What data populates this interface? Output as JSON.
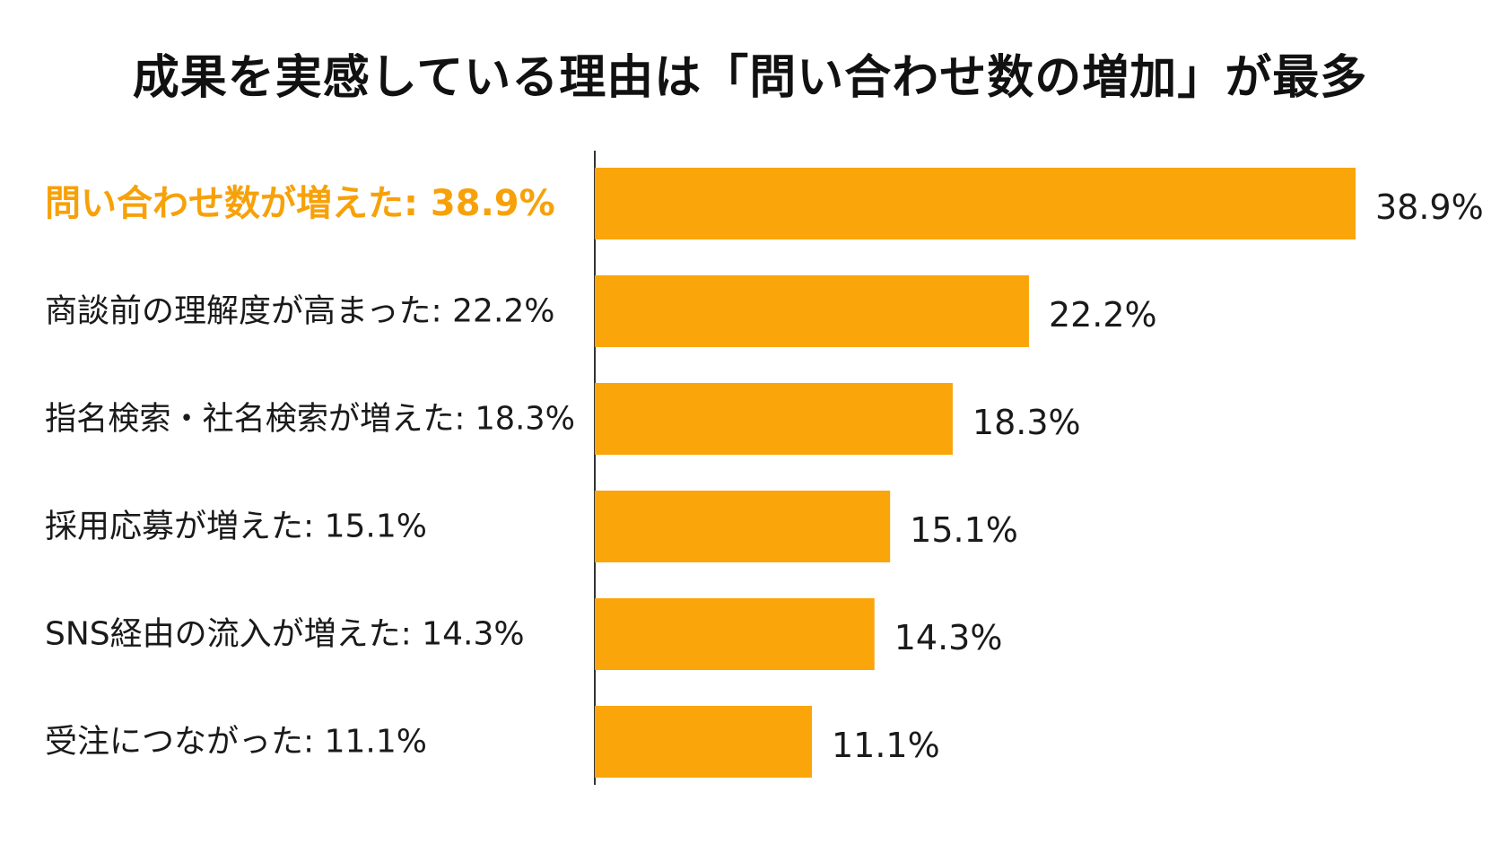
{
  "chart_data": {
    "type": "bar",
    "orientation": "horizontal",
    "title": "成果を実感している理由は「問い合わせ数の増加」が最多",
    "categories": [
      "問い合わせ数が増えた",
      "商談前の理解度が高まった",
      "指名検索・社名検索が増えた",
      "採用応募が増えた",
      "SNS経由の流入が増えた",
      "受注につながった"
    ],
    "category_labels": [
      "問い合わせ数が増えた: 38.9%",
      "商談前の理解度が高まった: 22.2%",
      "指名検索・社名検索が増えた: 18.3%",
      "採用応募が増えた: 15.1%",
      "SNS経由の流入が増えた: 14.3%",
      "受注につながった: 11.1%"
    ],
    "values": [
      38.9,
      22.2,
      18.3,
      15.1,
      14.3,
      11.1
    ],
    "value_labels": [
      "38.9%",
      "22.2%",
      "18.3%",
      "15.1%",
      "14.3%",
      "11.1%"
    ],
    "unit": "%",
    "highlight_index": 0,
    "xlim": [
      0,
      40
    ],
    "grid": false,
    "legend": "none",
    "colors": {
      "bar": "#faa50a",
      "highlight_text": "#f7a10a",
      "axis": "#333333",
      "text": "#1a1a1a"
    }
  }
}
